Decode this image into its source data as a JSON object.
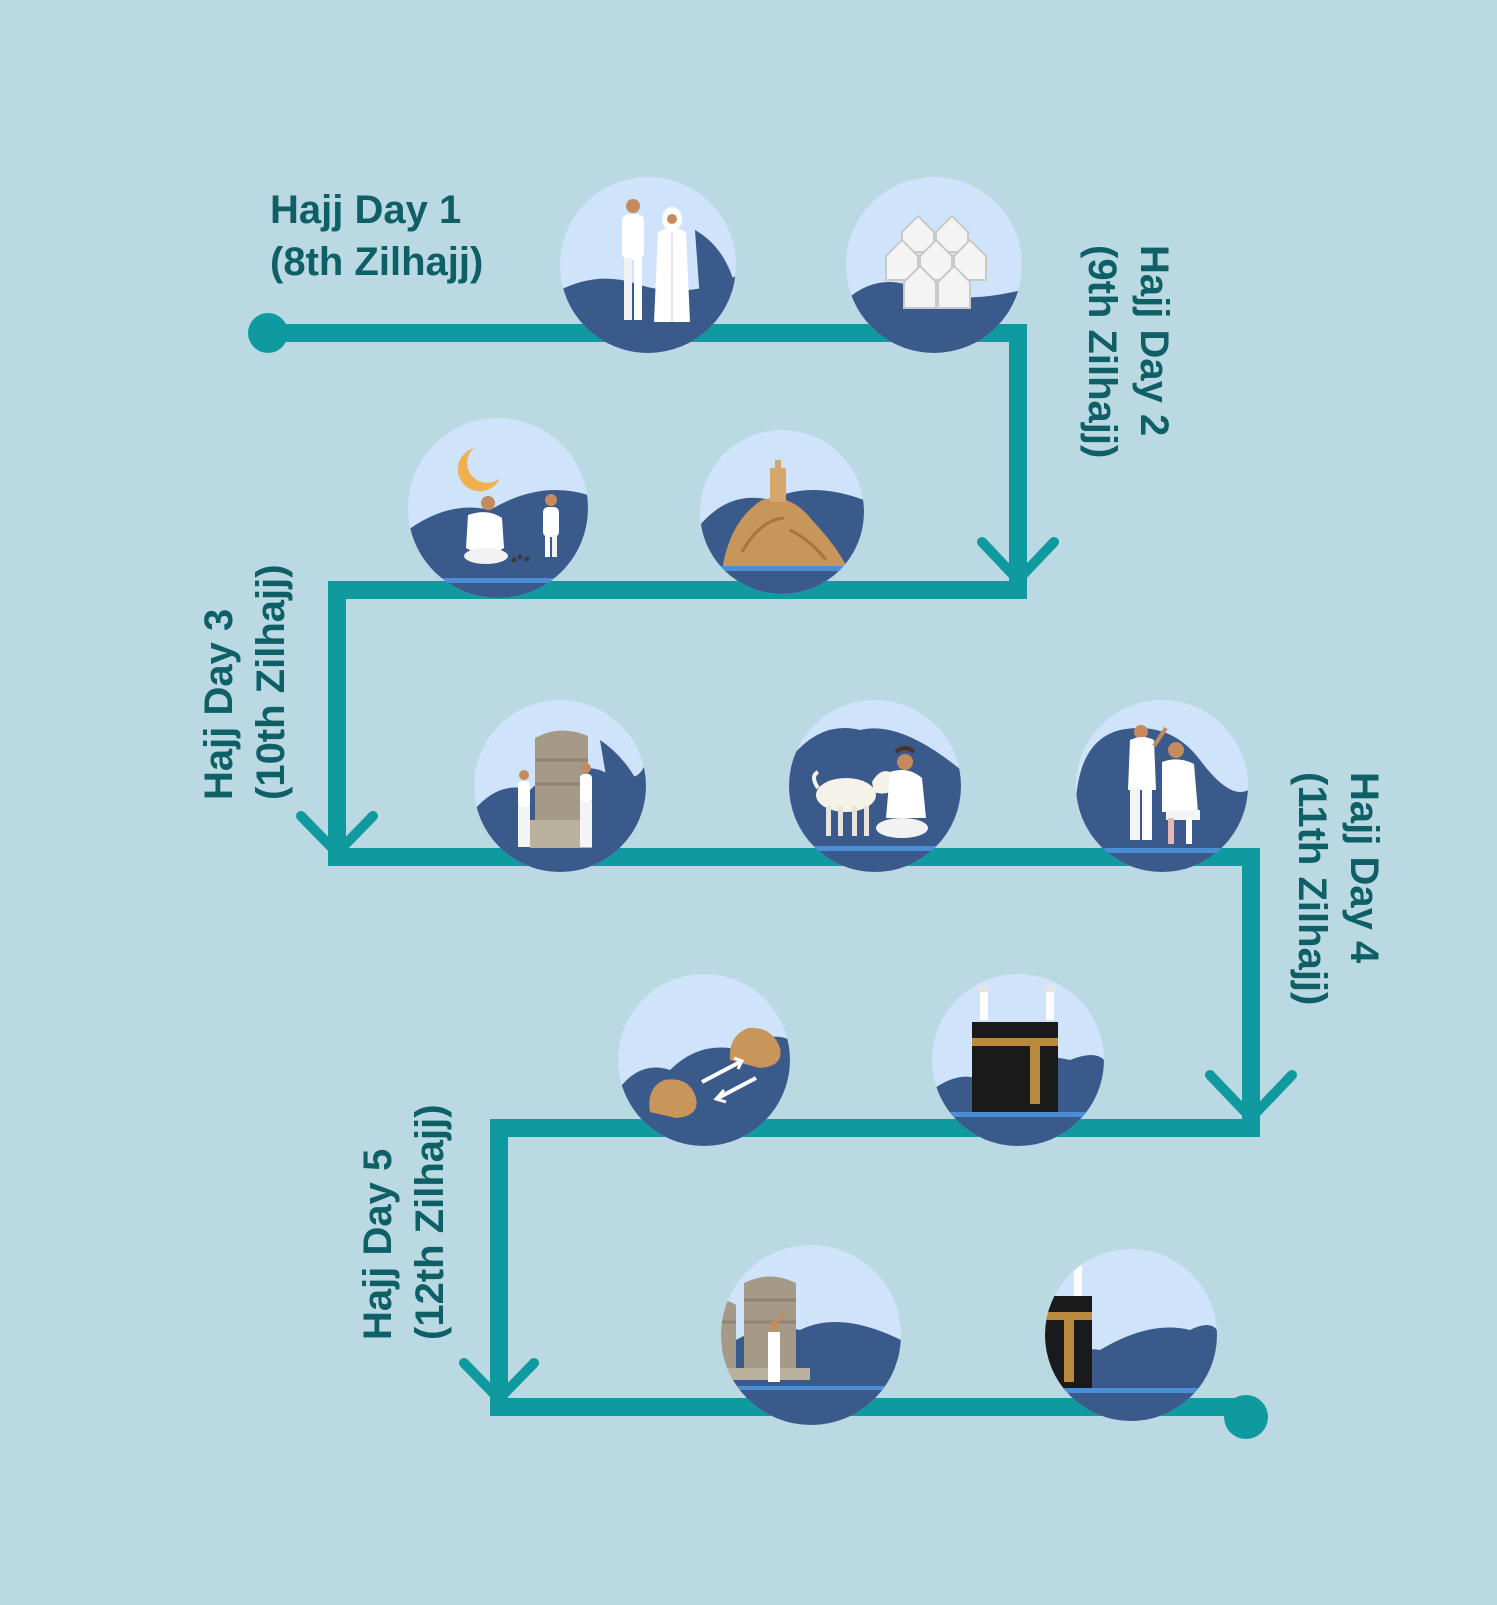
{
  "days": [
    {
      "title": "Hajj Day 1",
      "date": "(8th Zilhajj)"
    },
    {
      "title": "Hajj Day 2",
      "date": "(9th Zilhajj)"
    },
    {
      "title": "Hajj Day 3",
      "date": "(10th Zilhajj)"
    },
    {
      "title": "Hajj Day 4",
      "date": "(11th Zilhajj)"
    },
    {
      "title": "Hajj Day 5",
      "date": "(12th Zilhajj)"
    }
  ],
  "icons": [
    "pilgrims-ihram-icon",
    "mina-tents-icon",
    "muzdalifah-pebbles-night-icon",
    "mount-arafat-icon",
    "jamarat-stoning-icon",
    "animal-sacrifice-icon",
    "hair-shaving-icon",
    "safa-marwah-sai-icon",
    "kaaba-tawaf-icon",
    "jamarat-three-pillars-icon",
    "kaaba-farewell-tawaf-icon"
  ],
  "colors": {
    "background": "#bad9e3",
    "path": "#0f9aa0",
    "label": "#0f5f66",
    "circle": "#cfe4fa",
    "hill": "#3a5a8c"
  }
}
